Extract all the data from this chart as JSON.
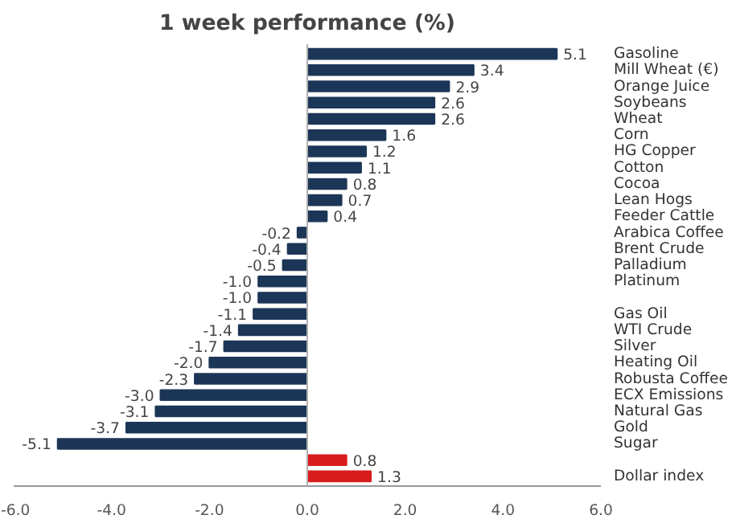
{
  "chart_data": {
    "type": "bar",
    "orientation": "horizontal",
    "title": "1 week performance (%)",
    "categories": [
      "Gasoline",
      "Mill Wheat (€)",
      "Orange Juice",
      "Soybeans",
      "Wheat",
      "Corn",
      "HG Copper",
      "Cotton",
      "Cocoa",
      "Lean Hogs",
      "Feeder Cattle",
      "Arabica Coffee",
      "Brent Crude",
      "Palladium",
      "Platinum",
      null,
      "Gas Oil",
      "WTI Crude",
      "Silver",
      "Heating Oil",
      "Robusta Coffee",
      "ECX Emissions",
      "Natural Gas",
      "Gold",
      "Sugar",
      null,
      "Dollar index"
    ],
    "values": [
      5.1,
      3.4,
      2.9,
      2.6,
      2.6,
      1.6,
      1.2,
      1.1,
      0.8,
      0.7,
      0.4,
      -0.2,
      -0.4,
      -0.5,
      -1.0,
      -1.0,
      -1.1,
      -1.4,
      -1.7,
      -2.0,
      -2.3,
      -3.0,
      -3.1,
      -3.7,
      -5.1,
      0.8,
      1.3
    ],
    "value_labels": [
      "5.1",
      "3.4",
      "2.9",
      "2.6",
      "2.6",
      "1.6",
      "1.2",
      "1.1",
      "0.8",
      "0.7",
      "0.4",
      "-0.2",
      "-0.4",
      "-0.5",
      "-1.0",
      "-1.0",
      "-1.1",
      "-1.4",
      "-1.7",
      "-2.0",
      "-2.3",
      "-3.0",
      "-3.1",
      "-3.7",
      "-5.1",
      "0.8",
      "1.3"
    ],
    "colors": [
      "#1c3657",
      "#1c3657",
      "#1c3657",
      "#1c3657",
      "#1c3657",
      "#1c3657",
      "#1c3657",
      "#1c3657",
      "#1c3657",
      "#1c3657",
      "#1c3657",
      "#1c3657",
      "#1c3657",
      "#1c3657",
      "#1c3657",
      "#1c3657",
      "#1c3657",
      "#1c3657",
      "#1c3657",
      "#1c3657",
      "#1c3657",
      "#1c3657",
      "#1c3657",
      "#1c3657",
      "#1c3657",
      "#d91c1c",
      "#d91c1c"
    ],
    "xlim": [
      -6,
      6
    ],
    "xticks": [
      {
        "value": -6,
        "label": "-6.0"
      },
      {
        "value": -4,
        "label": "-4.0"
      },
      {
        "value": -2,
        "label": "-2.0"
      },
      {
        "value": 0,
        "label": "0.0"
      },
      {
        "value": 2,
        "label": "2.0"
      },
      {
        "value": 4,
        "label": "4.0"
      },
      {
        "value": 6,
        "label": "6.0"
      }
    ],
    "ref_lines": [
      {
        "axis": "x",
        "value": 0,
        "label": null,
        "color": "#b0b0b0"
      }
    ],
    "grid": false
  }
}
